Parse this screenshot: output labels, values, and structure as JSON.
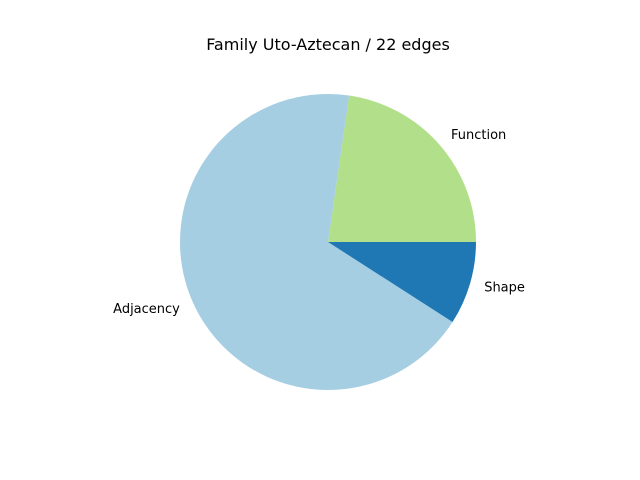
{
  "chart_data": {
    "type": "pie",
    "title": "Family Uto-Aztecan / 22 edges",
    "categories": [
      "Function",
      "Adjacency",
      "Shape"
    ],
    "values": [
      5,
      15,
      2
    ],
    "colors": [
      "#b2df8a",
      "#a6cee3",
      "#1f78b4"
    ],
    "start_angle": 0,
    "direction": "counterclockwise",
    "legend": "none"
  }
}
